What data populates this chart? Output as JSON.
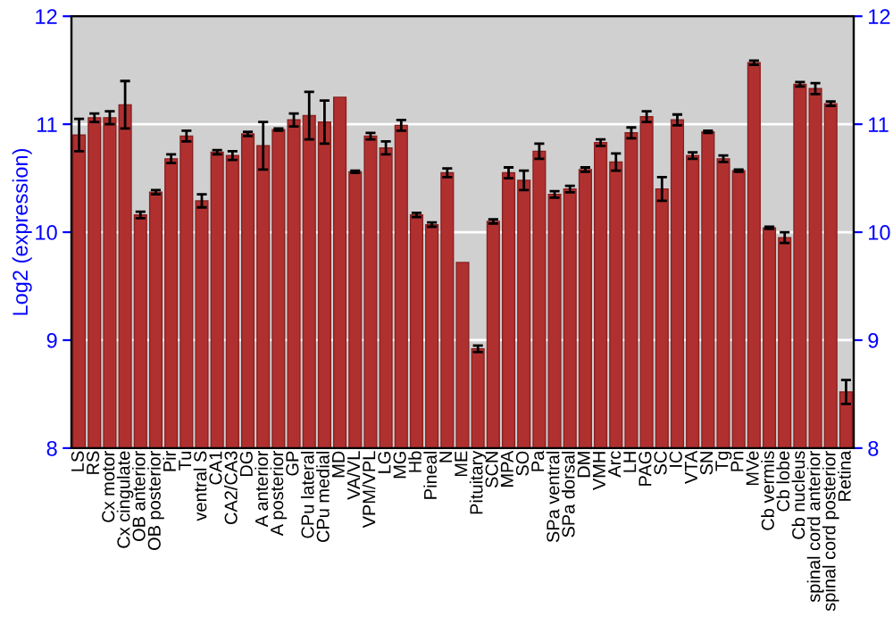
{
  "chart_data": {
    "type": "bar",
    "ylabel": "Log2 (expression)",
    "categories": [
      "LS",
      "RS",
      "Cx motor",
      "Cx cingulate",
      "OB anterior",
      "OB posterior",
      "Pir",
      "Tu",
      "ventral S",
      "CA1",
      "CA2/CA3",
      "DG",
      "A anterior",
      "A posterior",
      "GP",
      "CPu lateral",
      "CPu medial",
      "MD",
      "VA/VL",
      "VPM/VPL",
      "LG",
      "MG",
      "Hb",
      "Pineal",
      "N",
      "ME",
      "Pituitary",
      "SCN",
      "MPA",
      "SO",
      "Pa",
      "SPa ventral",
      "SPa dorsal",
      "DM",
      "VMH",
      "Arc",
      "LH",
      "PAG",
      "SC",
      "IC",
      "VTA",
      "SN",
      "Tg",
      "Pn",
      "MVe",
      "Cb vermis",
      "Cb lobe",
      "Cb nucleus",
      "spinal cord anterior",
      "spinal cord posterior",
      "Retina"
    ],
    "values": [
      10.9,
      11.06,
      11.06,
      11.18,
      10.16,
      10.37,
      10.68,
      10.89,
      10.29,
      10.74,
      10.71,
      10.91,
      10.8,
      10.95,
      11.04,
      11.08,
      11.02,
      11.25,
      10.56,
      10.89,
      10.78,
      10.99,
      10.16,
      10.07,
      10.55,
      9.72,
      8.92,
      10.1,
      10.55,
      10.48,
      10.75,
      10.35,
      10.4,
      10.58,
      10.83,
      10.65,
      10.92,
      11.07,
      10.4,
      11.04,
      10.71,
      10.93,
      10.68,
      10.57,
      11.57,
      10.04,
      9.95,
      11.37,
      11.33,
      11.19,
      8.52
    ],
    "errors": [
      0.15,
      0.04,
      0.06,
      0.22,
      0.03,
      0.02,
      0.04,
      0.05,
      0.06,
      0.02,
      0.04,
      0.02,
      0.22,
      0.01,
      0.06,
      0.22,
      0.2,
      null,
      0.01,
      0.03,
      0.06,
      0.05,
      0.02,
      0.02,
      0.04,
      null,
      0.03,
      0.02,
      0.05,
      0.09,
      0.07,
      0.03,
      0.03,
      0.02,
      0.03,
      0.08,
      0.05,
      0.05,
      0.11,
      0.05,
      0.03,
      0.01,
      0.03,
      0.01,
      0.02,
      0.01,
      0.05,
      0.02,
      0.05,
      0.02,
      0.11
    ],
    "color": "#b03030",
    "ylim": [
      8,
      12
    ],
    "yticks": [
      8,
      9,
      10,
      11,
      12
    ],
    "y2lim": [
      8,
      12
    ],
    "y2ticks": [
      8,
      9,
      10,
      11,
      12
    ],
    "grid": "y"
  }
}
